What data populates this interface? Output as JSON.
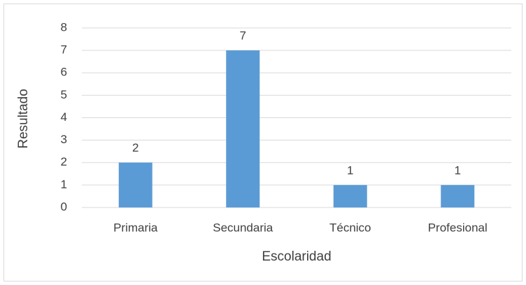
{
  "chart_data": {
    "type": "bar",
    "x_label": "Escolaridad",
    "y_label": "Resultado",
    "categories": [
      "Primaria",
      "Secundaria",
      "Técnico",
      "Profesional"
    ],
    "values": [
      2,
      7,
      1,
      1
    ],
    "color": "#5b9bd5",
    "ylim": [
      0,
      8
    ],
    "yticks": [
      0,
      1,
      2,
      3,
      4,
      5,
      6,
      7,
      8
    ],
    "grid": true
  }
}
